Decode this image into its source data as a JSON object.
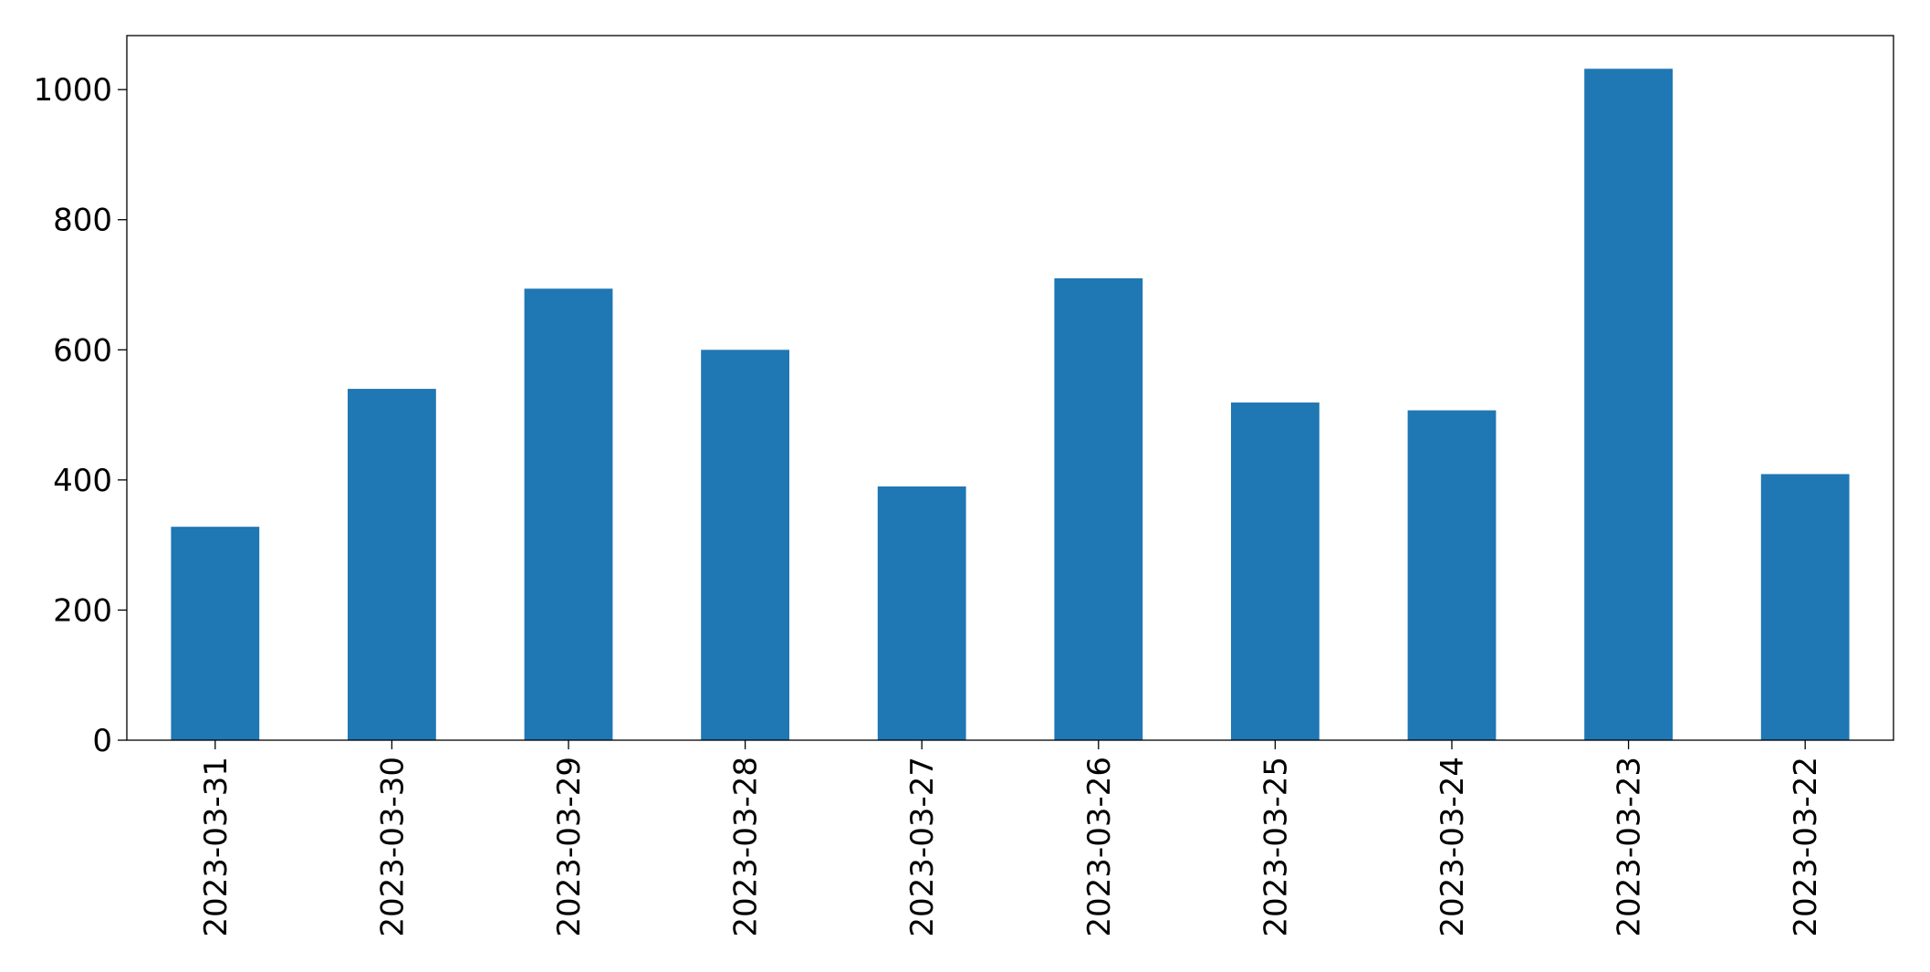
{
  "chart_data": {
    "type": "bar",
    "categories": [
      "2023-03-31",
      "2023-03-30",
      "2023-03-29",
      "2023-03-28",
      "2023-03-27",
      "2023-03-26",
      "2023-03-25",
      "2023-03-24",
      "2023-03-23",
      "2023-03-22"
    ],
    "values": [
      328,
      540,
      694,
      600,
      390,
      710,
      519,
      507,
      1032,
      409
    ],
    "color": "#1f77b4",
    "ylim": [
      0,
      1083
    ],
    "yticks": [
      0,
      200,
      400,
      600,
      800,
      1000
    ],
    "grid": false
  }
}
